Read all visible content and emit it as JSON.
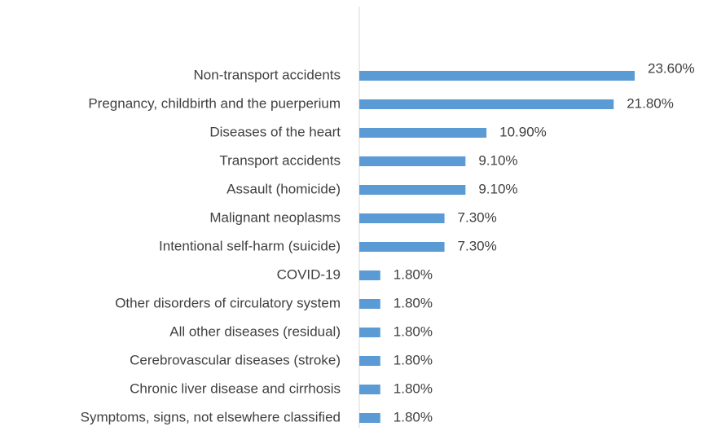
{
  "chart_data": {
    "type": "bar",
    "orientation": "horizontal",
    "categories": [
      "Non-transport accidents",
      "Pregnancy, childbirth and the puerperium",
      "Diseases of the heart",
      "Transport accidents",
      "Assault (homicide)",
      "Malignant neoplasms",
      "Intentional self-harm (suicide)",
      "COVID-19",
      "Other disorders of circulatory system",
      "All other diseases (residual)",
      "Cerebrovascular diseases (stroke)",
      "Chronic liver disease and cirrhosis",
      "Symptoms, signs, not elsewhere classified"
    ],
    "values": [
      23.6,
      21.8,
      10.9,
      9.1,
      9.1,
      7.3,
      7.3,
      1.8,
      1.8,
      1.8,
      1.8,
      1.8,
      1.8
    ],
    "value_labels": [
      "23.60%",
      "21.80%",
      "10.90%",
      "9.10%",
      "9.10%",
      "7.30%",
      "7.30%",
      "1.80%",
      "1.80%",
      "1.80%",
      "1.80%",
      "1.80%",
      "1.80%"
    ],
    "color": "#5b9bd5"
  }
}
